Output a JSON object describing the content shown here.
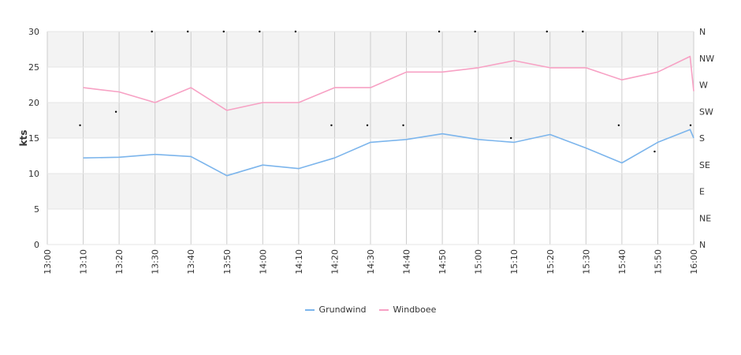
{
  "chart_data": {
    "type": "line",
    "ylabel": "kts",
    "ylim": [
      0,
      30
    ],
    "y_ticks": [
      "0",
      "5",
      "10",
      "15",
      "20",
      "25",
      "30"
    ],
    "y2_ticks": [
      "N",
      "NE",
      "E",
      "SE",
      "S",
      "SW",
      "W",
      "NW",
      "N"
    ],
    "x_ticks": [
      "13:00",
      "13:10",
      "13:20",
      "13:30",
      "13:40",
      "13:50",
      "14:00",
      "14:10",
      "14:20",
      "14:30",
      "14:40",
      "14:50",
      "15:00",
      "15:10",
      "15:20",
      "15:30",
      "15:40",
      "15:50",
      "16:00"
    ],
    "grid": true,
    "legend_position": "bottom",
    "series": [
      {
        "name": "Grundwind",
        "color": "#7cb5ec",
        "values": [
          null,
          12.2,
          12.3,
          12.7,
          12.4,
          9.7,
          11.2,
          10.7,
          12.2,
          14.4,
          14.8,
          15.6,
          14.8,
          14.4,
          15.5,
          13.6,
          11.5,
          14.4,
          16.2,
          15.0
        ],
        "x_minutes": [
          0,
          10,
          20,
          30,
          40,
          50,
          60,
          70,
          80,
          90,
          100,
          110,
          120,
          130,
          140,
          150,
          160,
          170,
          179,
          180
        ]
      },
      {
        "name": "Windboee",
        "color": "#f7a1c4",
        "values": [
          null,
          22.1,
          21.5,
          20.0,
          22.1,
          18.9,
          20.0,
          20.0,
          22.1,
          22.1,
          24.3,
          24.3,
          24.9,
          25.9,
          24.9,
          24.9,
          23.2,
          24.3,
          26.5,
          21.6
        ],
        "x_minutes": [
          0,
          10,
          20,
          30,
          40,
          50,
          60,
          70,
          80,
          90,
          100,
          110,
          120,
          130,
          140,
          150,
          160,
          170,
          179,
          180
        ]
      }
    ],
    "direction_markers": [
      {
        "time": "13:10",
        "direction_y": 16.8
      },
      {
        "time": "13:20",
        "direction_y": 18.7
      },
      {
        "time": "13:30",
        "direction_y": 30
      },
      {
        "time": "13:40",
        "direction_y": 30
      },
      {
        "time": "13:50",
        "direction_y": 30
      },
      {
        "time": "14:00",
        "direction_y": 30
      },
      {
        "time": "14:10",
        "direction_y": 30
      },
      {
        "time": "14:20",
        "direction_y": 16.8
      },
      {
        "time": "14:30",
        "direction_y": 16.8
      },
      {
        "time": "14:40",
        "direction_y": 16.8
      },
      {
        "time": "14:50",
        "direction_y": 30
      },
      {
        "time": "15:00",
        "direction_y": 30
      },
      {
        "time": "15:10",
        "direction_y": 15.0
      },
      {
        "time": "15:20",
        "direction_y": 30
      },
      {
        "time": "15:30",
        "direction_y": 30
      },
      {
        "time": "15:40",
        "direction_y": 16.8
      },
      {
        "time": "15:50",
        "direction_y": 13.1
      },
      {
        "time": "16:00",
        "direction_y": 16.8
      }
    ]
  }
}
